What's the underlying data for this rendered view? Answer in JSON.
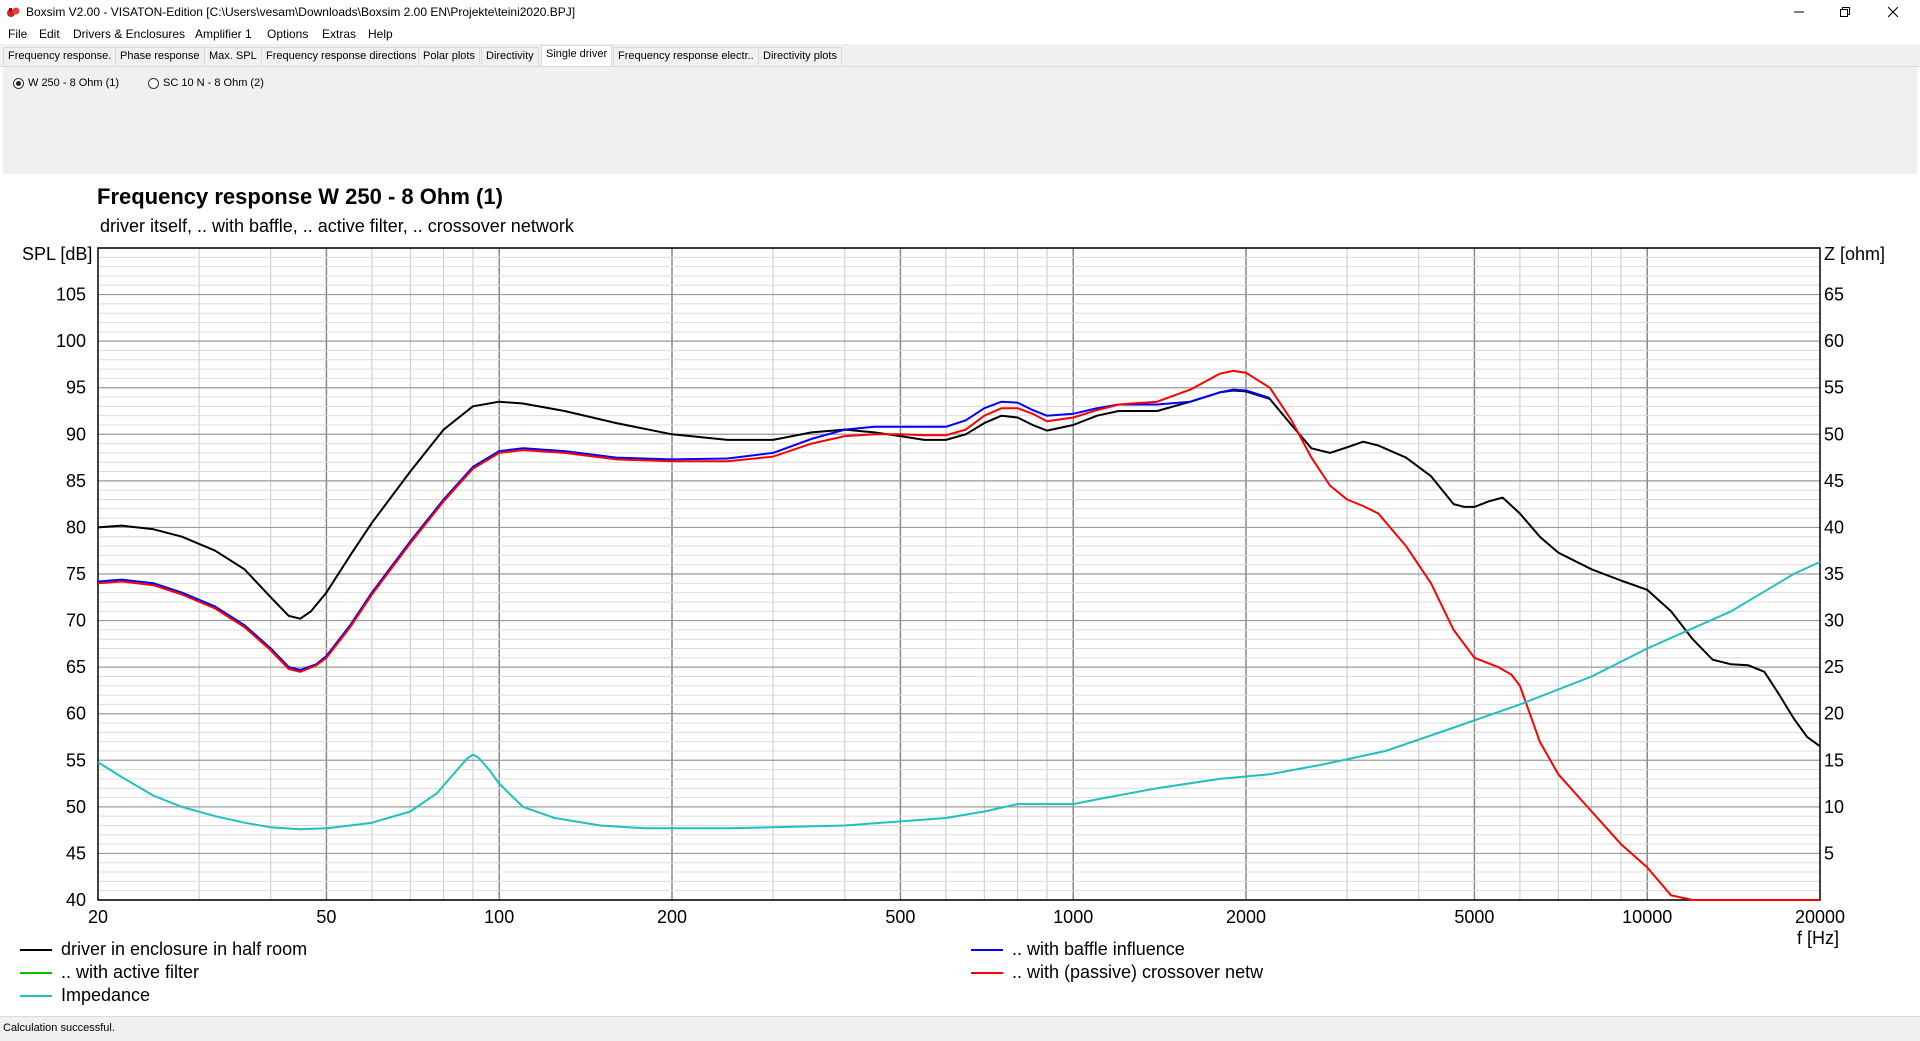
{
  "window": {
    "title": "Boxsim V2.00 - VISATON-Edition [C:\\Users\\vesam\\Downloads\\Boxsim 2.00 EN\\Projekte\\teini2020.BPJ]"
  },
  "menu": [
    "File",
    "Edit",
    "Drivers & Enclosures",
    "Amplifier 1",
    "Options",
    "Extras",
    "Help"
  ],
  "tabs": [
    {
      "label": "Frequency response."
    },
    {
      "label": "Phase response"
    },
    {
      "label": "Max. SPL"
    },
    {
      "label": "Frequency response directions"
    },
    {
      "label": "Polar plots"
    },
    {
      "label": "Directivity"
    },
    {
      "label": "Single driver",
      "active": true
    },
    {
      "label": "Frequency response electr.."
    },
    {
      "label": "Directivity plots"
    }
  ],
  "drivers": [
    {
      "label": "W 250 - 8 Ohm (1)",
      "checked": true
    },
    {
      "label": "SC 10 N - 8 Ohm (2)",
      "checked": false
    }
  ],
  "status": "Calculation successful.",
  "colors": {
    "driver": "#000000",
    "baffle": "#0000ff",
    "active": "#00c000",
    "crossover": "#ff0000",
    "impedance": "#20c0c0"
  },
  "chart_data": {
    "type": "line",
    "title": "Frequency response W 250 - 8 Ohm (1)",
    "subtitle": "driver itself, .. with baffle, .. active filter, .. crossover network",
    "ylabel": "SPL [dB]",
    "y2label": "Z [ohm]",
    "xlabel": "f [Hz]",
    "xscale": "log",
    "xlim": [
      20,
      20000
    ],
    "ylim": [
      40,
      110
    ],
    "y2lim": [
      0,
      70
    ],
    "xticks": [
      20,
      50,
      100,
      200,
      500,
      1000,
      2000,
      5000,
      10000,
      20000
    ],
    "xtick_labels": [
      "20",
      "50",
      "100",
      "200",
      "500",
      "1000",
      "2000",
      "5000",
      "10000",
      "20000"
    ],
    "yticks": [
      40,
      45,
      50,
      55,
      60,
      65,
      70,
      75,
      80,
      85,
      90,
      95,
      100,
      105
    ],
    "y2ticks": [
      5,
      10,
      15,
      20,
      25,
      30,
      35,
      40,
      45,
      50,
      55,
      60,
      65
    ],
    "grid": true,
    "legend": [
      {
        "label": "driver in enclosure in half room",
        "color": "#000000"
      },
      {
        "label": ".. with baffle influence",
        "color": "#0000ff"
      },
      {
        "label": ".. with active filter",
        "color": "#00c000"
      },
      {
        "label": ".. with (passive) crossover netw",
        "color": "#ff0000"
      },
      {
        "label": "Impedance",
        "color": "#20c0c0"
      }
    ],
    "series": [
      {
        "name": "driver in enclosure in half room",
        "color": "#000000",
        "axis": "left",
        "points": [
          [
            20,
            80
          ],
          [
            22,
            80.2
          ],
          [
            25,
            79.8
          ],
          [
            28,
            79
          ],
          [
            32,
            77.5
          ],
          [
            36,
            75.5
          ],
          [
            40,
            72.5
          ],
          [
            43,
            70.5
          ],
          [
            45,
            70.2
          ],
          [
            47,
            71
          ],
          [
            50,
            73
          ],
          [
            55,
            77
          ],
          [
            60,
            80.5
          ],
          [
            70,
            86
          ],
          [
            80,
            90.5
          ],
          [
            90,
            93
          ],
          [
            100,
            93.5
          ],
          [
            110,
            93.3
          ],
          [
            130,
            92.5
          ],
          [
            160,
            91.2
          ],
          [
            200,
            90
          ],
          [
            250,
            89.4
          ],
          [
            300,
            89.4
          ],
          [
            350,
            90.2
          ],
          [
            400,
            90.5
          ],
          [
            450,
            90.2
          ],
          [
            500,
            89.8
          ],
          [
            550,
            89.4
          ],
          [
            600,
            89.4
          ],
          [
            650,
            90
          ],
          [
            700,
            91.2
          ],
          [
            750,
            92
          ],
          [
            800,
            91.8
          ],
          [
            850,
            91
          ],
          [
            900,
            90.4
          ],
          [
            1000,
            91
          ],
          [
            1100,
            92
          ],
          [
            1200,
            92.5
          ],
          [
            1400,
            92.5
          ],
          [
            1600,
            93.5
          ],
          [
            1800,
            94.5
          ],
          [
            1900,
            94.7
          ],
          [
            2000,
            94.6
          ],
          [
            2200,
            93.8
          ],
          [
            2400,
            91
          ],
          [
            2600,
            88.5
          ],
          [
            2800,
            88
          ],
          [
            3000,
            88.6
          ],
          [
            3200,
            89.2
          ],
          [
            3400,
            88.8
          ],
          [
            3800,
            87.5
          ],
          [
            4200,
            85.5
          ],
          [
            4600,
            82.5
          ],
          [
            4800,
            82.2
          ],
          [
            5000,
            82.2
          ],
          [
            5300,
            82.8
          ],
          [
            5600,
            83.2
          ],
          [
            6000,
            81.5
          ],
          [
            6500,
            79
          ],
          [
            7000,
            77.3
          ],
          [
            8000,
            75.5
          ],
          [
            9000,
            74.3
          ],
          [
            10000,
            73.3
          ],
          [
            11000,
            71
          ],
          [
            12000,
            68
          ],
          [
            13000,
            65.8
          ],
          [
            14000,
            65.3
          ],
          [
            15000,
            65.2
          ],
          [
            16000,
            64.5
          ],
          [
            17000,
            62
          ],
          [
            18000,
            59.5
          ],
          [
            19000,
            57.5
          ],
          [
            20000,
            56.5
          ]
        ]
      },
      {
        "name": ".. with baffle influence",
        "color": "#0000ff",
        "axis": "left",
        "points": [
          [
            20,
            74.2
          ],
          [
            22,
            74.4
          ],
          [
            25,
            74
          ],
          [
            28,
            73
          ],
          [
            32,
            71.5
          ],
          [
            36,
            69.5
          ],
          [
            40,
            67
          ],
          [
            43,
            65
          ],
          [
            45,
            64.7
          ],
          [
            48,
            65.3
          ],
          [
            50,
            66.2
          ],
          [
            55,
            69.5
          ],
          [
            60,
            73
          ],
          [
            70,
            78.5
          ],
          [
            80,
            83
          ],
          [
            90,
            86.5
          ],
          [
            100,
            88.2
          ],
          [
            110,
            88.5
          ],
          [
            130,
            88.2
          ],
          [
            160,
            87.5
          ],
          [
            200,
            87.3
          ],
          [
            250,
            87.4
          ],
          [
            300,
            88
          ],
          [
            350,
            89.5
          ],
          [
            400,
            90.5
          ],
          [
            450,
            90.8
          ],
          [
            500,
            90.8
          ],
          [
            550,
            90.8
          ],
          [
            600,
            90.8
          ],
          [
            650,
            91.5
          ],
          [
            700,
            92.8
          ],
          [
            750,
            93.5
          ],
          [
            800,
            93.4
          ],
          [
            850,
            92.6
          ],
          [
            900,
            92
          ],
          [
            1000,
            92.2
          ],
          [
            1100,
            92.8
          ],
          [
            1200,
            93.2
          ],
          [
            1400,
            93.2
          ],
          [
            1600,
            93.5
          ],
          [
            1800,
            94.5
          ],
          [
            1900,
            94.8
          ],
          [
            2000,
            94.7
          ],
          [
            2200,
            93.9
          ]
        ]
      },
      {
        "name": ".. with (passive) crossover netw",
        "color": "#ff0000",
        "axis": "left",
        "points": [
          [
            20,
            74
          ],
          [
            22,
            74.2
          ],
          [
            25,
            73.8
          ],
          [
            28,
            72.8
          ],
          [
            32,
            71.3
          ],
          [
            36,
            69.3
          ],
          [
            40,
            66.8
          ],
          [
            43,
            64.8
          ],
          [
            45,
            64.5
          ],
          [
            48,
            65.2
          ],
          [
            50,
            66
          ],
          [
            55,
            69.3
          ],
          [
            60,
            72.8
          ],
          [
            70,
            78.3
          ],
          [
            80,
            82.8
          ],
          [
            90,
            86.3
          ],
          [
            100,
            88
          ],
          [
            110,
            88.3
          ],
          [
            130,
            88
          ],
          [
            160,
            87.3
          ],
          [
            200,
            87.1
          ],
          [
            250,
            87.1
          ],
          [
            300,
            87.6
          ],
          [
            350,
            89
          ],
          [
            400,
            89.8
          ],
          [
            450,
            90
          ],
          [
            500,
            90
          ],
          [
            550,
            89.9
          ],
          [
            600,
            89.9
          ],
          [
            650,
            90.5
          ],
          [
            700,
            92
          ],
          [
            750,
            92.8
          ],
          [
            800,
            92.8
          ],
          [
            850,
            92.2
          ],
          [
            900,
            91.4
          ],
          [
            1000,
            91.8
          ],
          [
            1100,
            92.6
          ],
          [
            1200,
            93.2
          ],
          [
            1400,
            93.5
          ],
          [
            1600,
            94.8
          ],
          [
            1800,
            96.5
          ],
          [
            1900,
            96.8
          ],
          [
            2000,
            96.6
          ],
          [
            2200,
            95
          ],
          [
            2400,
            91.5
          ],
          [
            2600,
            87.5
          ],
          [
            2800,
            84.5
          ],
          [
            3000,
            83
          ],
          [
            3200,
            82.3
          ],
          [
            3400,
            81.5
          ],
          [
            3800,
            78
          ],
          [
            4200,
            74
          ],
          [
            4600,
            69
          ],
          [
            5000,
            66
          ],
          [
            5500,
            65
          ],
          [
            5800,
            64.2
          ],
          [
            6000,
            63
          ],
          [
            6500,
            57
          ],
          [
            7000,
            53.5
          ],
          [
            8000,
            49.5
          ],
          [
            9000,
            46
          ],
          [
            10000,
            43.5
          ],
          [
            11000,
            40.5
          ],
          [
            12000,
            40
          ],
          [
            20000,
            40
          ]
        ]
      },
      {
        "name": "Impedance",
        "color": "#20c0c0",
        "axis": "right",
        "points": [
          [
            20,
            14.8
          ],
          [
            22,
            13.2
          ],
          [
            25,
            11.2
          ],
          [
            28,
            10
          ],
          [
            32,
            9
          ],
          [
            36,
            8.3
          ],
          [
            40,
            7.8
          ],
          [
            45,
            7.6
          ],
          [
            50,
            7.7
          ],
          [
            55,
            8
          ],
          [
            60,
            8.3
          ],
          [
            70,
            9.5
          ],
          [
            78,
            11.5
          ],
          [
            84,
            13.8
          ],
          [
            88,
            15.2
          ],
          [
            90,
            15.6
          ],
          [
            92,
            15.3
          ],
          [
            96,
            14
          ],
          [
            100,
            12.5
          ],
          [
            110,
            10
          ],
          [
            125,
            8.8
          ],
          [
            150,
            8
          ],
          [
            180,
            7.7
          ],
          [
            250,
            7.7
          ],
          [
            400,
            8
          ],
          [
            600,
            8.8
          ],
          [
            700,
            9.5
          ],
          [
            800,
            10.3
          ],
          [
            900,
            10.3
          ],
          [
            1000,
            10.3
          ],
          [
            1100,
            10.8
          ],
          [
            1400,
            12
          ],
          [
            1800,
            13
          ],
          [
            2200,
            13.5
          ],
          [
            2700,
            14.5
          ],
          [
            3500,
            16
          ],
          [
            4500,
            18.3
          ],
          [
            6000,
            21
          ],
          [
            8000,
            24
          ],
          [
            10000,
            27
          ],
          [
            14000,
            31
          ],
          [
            18000,
            35
          ],
          [
            20000,
            36.3
          ]
        ]
      }
    ]
  }
}
